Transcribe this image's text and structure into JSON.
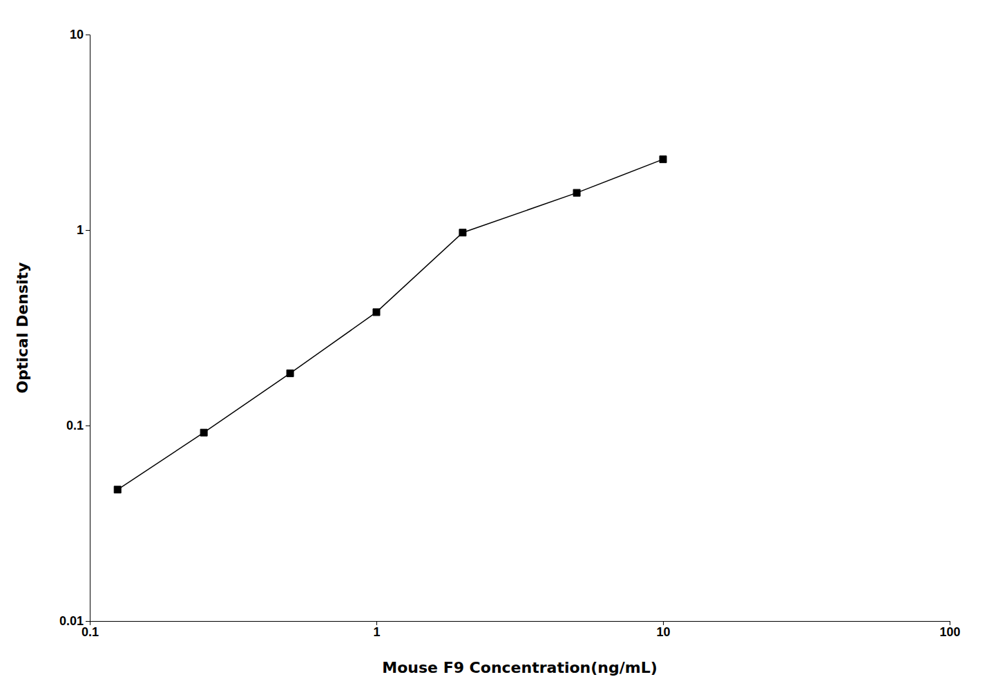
{
  "chart_data": {
    "type": "line",
    "x": [
      0.125,
      0.25,
      0.5,
      1.0,
      2.0,
      5.0,
      10.0
    ],
    "values": [
      0.047,
      0.092,
      0.185,
      0.38,
      0.97,
      1.55,
      2.3
    ],
    "xlabel": "Mouse F9 Concentration(ng/mL)",
    "ylabel": "Optical Density",
    "xlim": [
      0.1,
      100
    ],
    "ylim": [
      0.01,
      10
    ],
    "xticks": [
      0.1,
      1,
      10,
      100
    ],
    "yticks": [
      0.01,
      0.1,
      1,
      10
    ],
    "log": true,
    "color": "#000000",
    "marker": "square",
    "grid": false
  }
}
